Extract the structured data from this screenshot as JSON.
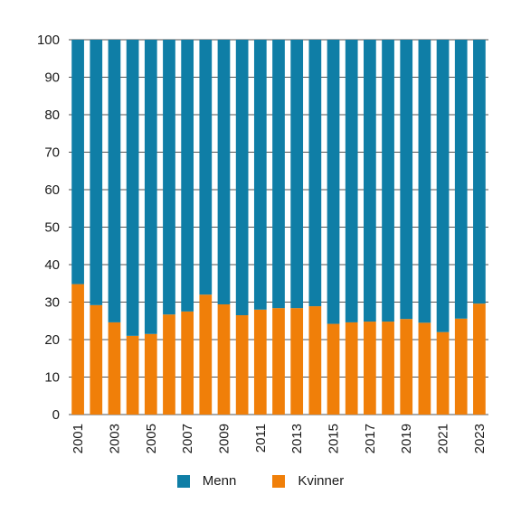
{
  "chart_data": {
    "type": "bar",
    "stacked": true,
    "title": "",
    "xlabel": "",
    "ylabel": "",
    "ylim": [
      0,
      100
    ],
    "yticks": [
      0,
      10,
      20,
      30,
      40,
      50,
      60,
      70,
      80,
      90,
      100
    ],
    "categories": [
      "2001",
      "2002",
      "2003",
      "2004",
      "2005",
      "2006",
      "2007",
      "2008",
      "2009",
      "2010",
      "2011",
      "2012",
      "2013",
      "2014",
      "2015",
      "2016",
      "2017",
      "2018",
      "2019",
      "2020",
      "2021",
      "2022",
      "2023"
    ],
    "xtick_labels": [
      "2001",
      "2003",
      "2005",
      "2007",
      "2009",
      "2011",
      "2013",
      "2015",
      "2017",
      "2019",
      "2021",
      "2023"
    ],
    "series": [
      {
        "name": "Kvinner",
        "color": "#f07f09",
        "values": [
          34.8,
          29.2,
          24.6,
          21.0,
          21.5,
          26.7,
          27.5,
          32.0,
          29.4,
          26.5,
          28.0,
          28.4,
          28.4,
          28.9,
          24.2,
          24.6,
          24.8,
          24.8,
          25.5,
          24.5,
          22.0,
          25.6,
          29.6
        ]
      },
      {
        "name": "Menn",
        "color": "#0f7ea6",
        "values": [
          65.2,
          70.8,
          75.4,
          79.0,
          78.5,
          73.3,
          72.5,
          68.0,
          70.6,
          73.5,
          72.0,
          71.6,
          71.6,
          71.1,
          75.8,
          75.4,
          75.2,
          75.2,
          74.5,
          75.5,
          78.0,
          74.4,
          70.4
        ]
      }
    ],
    "grid": true,
    "legend_position": "bottom",
    "legend_order": [
      "Menn",
      "Kvinner"
    ]
  }
}
